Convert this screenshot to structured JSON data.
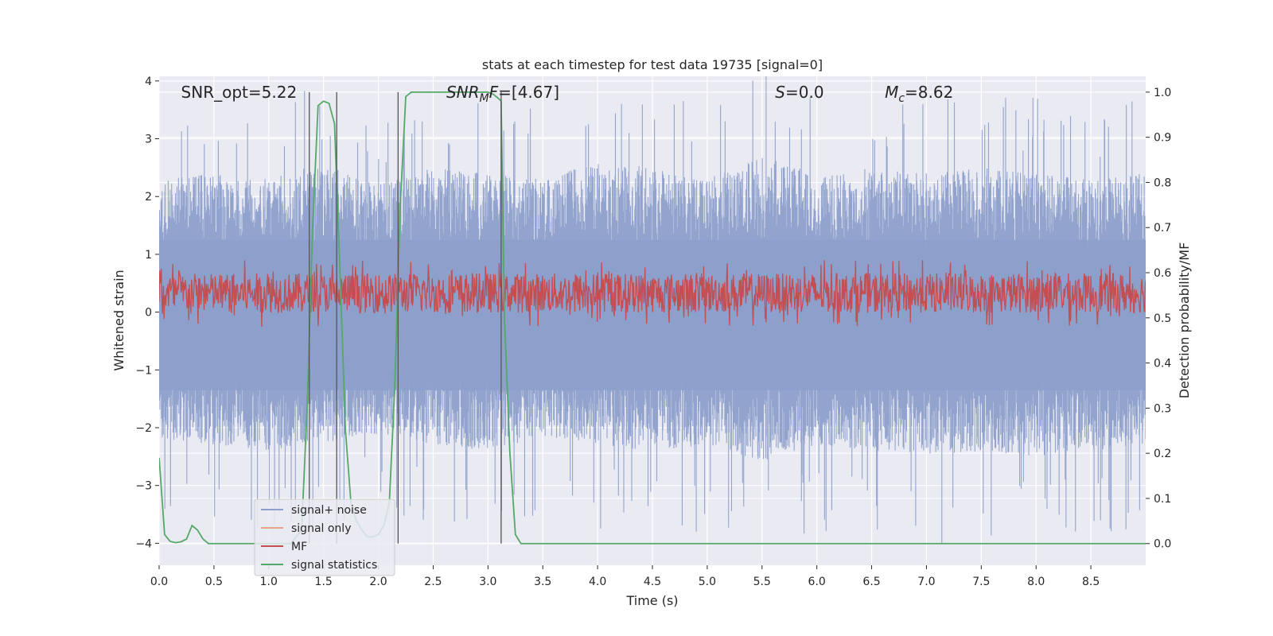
{
  "chart_data": {
    "type": "line",
    "title": "stats at each timestep for test data 19735 [signal=0]",
    "xlabel": "Time (s)",
    "ylabel_left": "Whitened strain",
    "ylabel_right": "Detection probability/MF",
    "xlim": [
      0,
      9.0
    ],
    "ylim_left": [
      -4.38,
      4.08
    ],
    "ylim_right": [
      -0.048,
      1.035
    ],
    "x_ticks": [
      0.0,
      0.5,
      1.0,
      1.5,
      2.0,
      2.5,
      3.0,
      3.5,
      4.0,
      4.5,
      5.0,
      5.5,
      6.0,
      6.5,
      7.0,
      7.5,
      8.0,
      8.5
    ],
    "x_tick_labels": [
      "0.0",
      "0.5",
      "1.0",
      "1.5",
      "2.0",
      "2.5",
      "3.0",
      "3.5",
      "4.0",
      "4.5",
      "5.0",
      "5.5",
      "6.0",
      "6.5",
      "7.0",
      "7.5",
      "8.0",
      "8.5"
    ],
    "y_left_ticks": [
      4,
      3,
      2,
      1,
      0,
      -1,
      -2,
      -3,
      -4
    ],
    "y_left_tick_labels": [
      "4",
      "3",
      "2",
      "1",
      "0",
      "−1",
      "−2",
      "−3",
      "−4"
    ],
    "y_right_ticks": [
      1.0,
      0.9,
      0.8,
      0.7,
      0.6,
      0.5,
      0.4,
      0.3,
      0.2,
      0.1,
      0.0
    ],
    "y_right_tick_labels": [
      "1.0",
      "0.9",
      "0.8",
      "0.7",
      "0.6",
      "0.5",
      "0.4",
      "0.3",
      "0.2",
      "0.1",
      "0.0"
    ],
    "grid": true,
    "legend_position": "lower-left",
    "annotations": [
      {
        "text": "SNR_opt=5.22",
        "x": 0.2
      },
      {
        "text": "SNR_MF=[4.67]",
        "x": 2.62
      },
      {
        "text": "S=0.0",
        "x": 5.62
      },
      {
        "text": "M_c=8.62",
        "x": 6.62
      }
    ],
    "vertical_lines_x": [
      1.37,
      1.62,
      2.18,
      3.12
    ],
    "series": [
      {
        "name": "signal+ noise",
        "axis": "left",
        "color": "#8da0cb",
        "kind": "noise",
        "envelope_pos": [
          [
            0,
            2.3
          ],
          [
            0.5,
            2.4
          ],
          [
            1.0,
            2.3
          ],
          [
            1.5,
            2.6
          ],
          [
            2.0,
            2.2
          ],
          [
            2.5,
            2.5
          ],
          [
            3.0,
            2.4
          ],
          [
            3.5,
            2.3
          ],
          [
            4.0,
            2.6
          ],
          [
            4.5,
            2.5
          ],
          [
            5.0,
            2.3
          ],
          [
            5.5,
            2.7
          ],
          [
            6.0,
            2.4
          ],
          [
            6.5,
            2.5
          ],
          [
            7.0,
            2.4
          ],
          [
            7.5,
            2.5
          ],
          [
            8.0,
            2.4
          ],
          [
            8.5,
            2.3
          ],
          [
            9.0,
            2.4
          ]
        ],
        "envelope_neg": [
          [
            0,
            -2.2
          ],
          [
            0.5,
            -2.3
          ],
          [
            1.0,
            -2.4
          ],
          [
            1.5,
            -2.3
          ],
          [
            2.0,
            -2.1
          ],
          [
            2.5,
            -2.3
          ],
          [
            3.0,
            -2.4
          ],
          [
            3.5,
            -2.2
          ],
          [
            4.0,
            -2.3
          ],
          [
            4.5,
            -2.4
          ],
          [
            5.0,
            -2.3
          ],
          [
            5.5,
            -2.6
          ],
          [
            6.0,
            -2.3
          ],
          [
            6.5,
            -2.4
          ],
          [
            7.0,
            -2.5
          ],
          [
            7.5,
            -2.4
          ],
          [
            8.0,
            -2.5
          ],
          [
            8.5,
            -2.4
          ],
          [
            9.0,
            -2.3
          ]
        ]
      },
      {
        "name": "signal only",
        "axis": "left",
        "color": "#e8a48a",
        "values": []
      },
      {
        "name": "MF",
        "axis": "right",
        "color": "#c44e52",
        "kind": "band",
        "center": 0.555,
        "amplitude": 0.055
      },
      {
        "name": "signal statistics",
        "axis": "right",
        "color": "#55a868",
        "x": [
          0.0,
          0.05,
          0.1,
          0.15,
          0.2,
          0.25,
          0.3,
          0.35,
          0.4,
          0.45,
          0.5,
          0.6,
          0.8,
          1.0,
          1.2,
          1.3,
          1.35,
          1.4,
          1.45,
          1.5,
          1.55,
          1.6,
          1.65,
          1.7,
          1.75,
          1.8,
          1.85,
          1.9,
          1.95,
          2.0,
          2.05,
          2.1,
          2.15,
          2.2,
          2.25,
          2.3,
          2.5,
          3.0,
          3.05,
          3.1,
          3.12,
          3.15,
          3.2,
          3.25,
          3.3,
          3.5,
          4.0,
          5.0,
          6.0,
          7.0,
          8.0,
          9.0
        ],
        "y": [
          0.19,
          0.02,
          0.005,
          0.002,
          0.004,
          0.01,
          0.04,
          0.03,
          0.01,
          0.0,
          0.0,
          0.0,
          0.0,
          0.0,
          0.0,
          0.03,
          0.3,
          0.7,
          0.97,
          0.98,
          0.975,
          0.93,
          0.6,
          0.25,
          0.09,
          0.05,
          0.03,
          0.015,
          0.015,
          0.02,
          0.04,
          0.09,
          0.35,
          0.75,
          0.99,
          1.0,
          1.0,
          1.0,
          0.995,
          0.985,
          0.98,
          0.5,
          0.2,
          0.02,
          0.0,
          0.0,
          0.0,
          0.0,
          0.0,
          0.0,
          0.0,
          0.0
        ]
      }
    ]
  }
}
